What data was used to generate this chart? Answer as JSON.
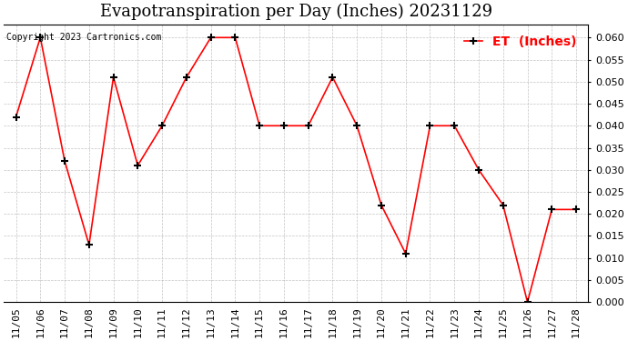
{
  "title": "Evapotranspiration per Day (Inches) 20231129",
  "copyright": "Copyright 2023 Cartronics.com",
  "legend_label": "ET  (Inches)",
  "x_labels": [
    "11/05",
    "11/06",
    "11/07",
    "11/08",
    "11/09",
    "11/10",
    "11/11",
    "11/12",
    "11/13",
    "11/14",
    "11/15",
    "11/16",
    "11/17",
    "11/18",
    "11/19",
    "11/20",
    "11/21",
    "11/22",
    "11/23",
    "11/24",
    "11/25",
    "11/26",
    "11/27",
    "11/28"
  ],
  "y_values": [
    0.042,
    0.06,
    0.032,
    0.013,
    0.051,
    0.031,
    0.04,
    0.051,
    0.06,
    0.06,
    0.04,
    0.04,
    0.04,
    0.051,
    0.04,
    0.022,
    0.011,
    0.04,
    0.04,
    0.03,
    0.022,
    0.0,
    0.021,
    0.021
  ],
  "ylim": [
    0.0,
    0.063
  ],
  "yticks": [
    0.0,
    0.005,
    0.01,
    0.015,
    0.02,
    0.025,
    0.03,
    0.035,
    0.04,
    0.045,
    0.05,
    0.055,
    0.06
  ],
  "line_color": "red",
  "marker_color": "black",
  "background_color": "#ffffff",
  "grid_color": "#aaaaaa",
  "title_fontsize": 13,
  "copyright_fontsize": 7,
  "legend_fontsize": 10,
  "tick_fontsize": 8
}
